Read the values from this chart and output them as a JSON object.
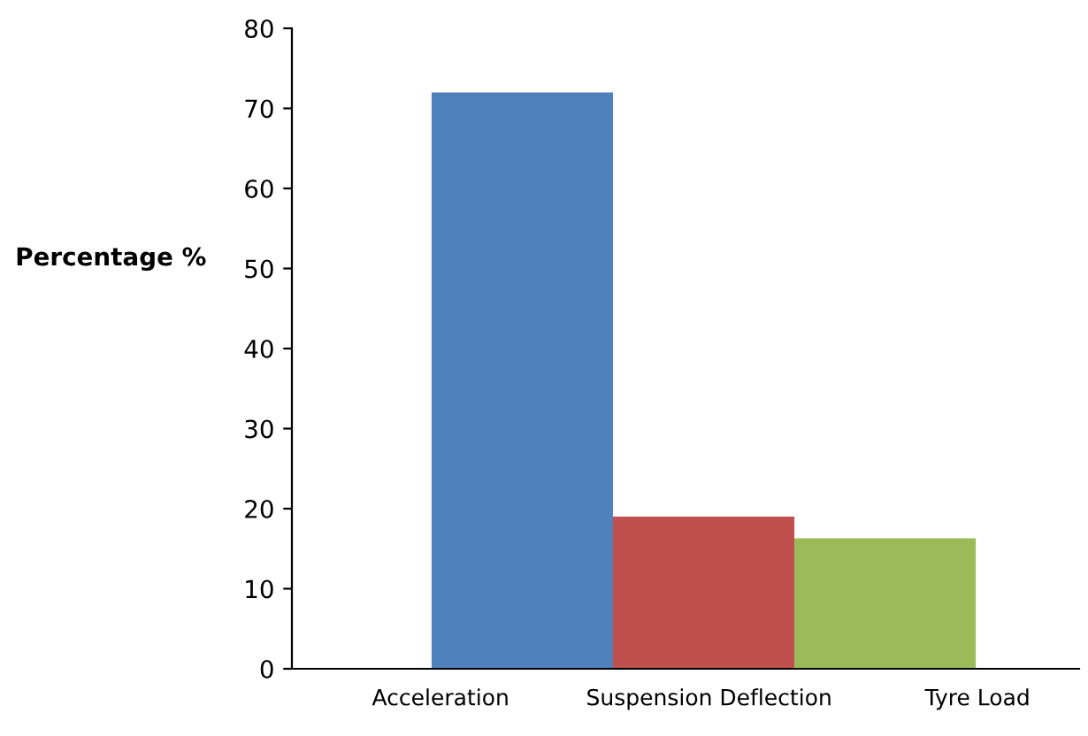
{
  "chart_data": {
    "type": "bar",
    "ylabel": "Percentage %",
    "categories": [
      "Acceleration",
      "Suspension Deflection",
      "Tyre Load"
    ],
    "values": [
      72,
      19,
      16.3
    ],
    "colors": [
      "#4f81bd",
      "#c0504d",
      "#9bbb59"
    ],
    "ylim": [
      0,
      80
    ],
    "yticks": [
      0,
      10,
      20,
      30,
      40,
      50,
      60,
      70,
      80
    ],
    "grid": false,
    "legend": false
  }
}
